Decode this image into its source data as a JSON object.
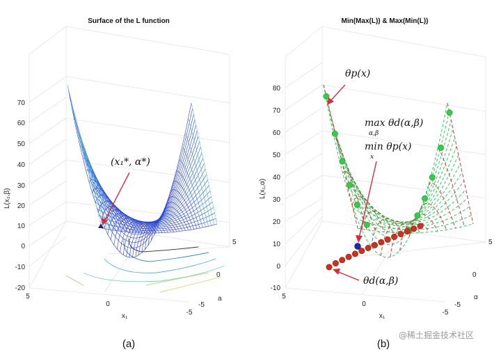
{
  "panel_a": {
    "title": "Surface of the L function",
    "z_label": "L(x₂,β)",
    "x_label": "x₁",
    "y_label": "a",
    "z_ticks": [
      "70",
      "60",
      "50",
      "40",
      "30",
      "20",
      "10",
      "0",
      "-10",
      "-20"
    ],
    "x_ticks": [
      "5",
      "0",
      "-5"
    ],
    "y_ticks": [
      "5",
      "0",
      "-5"
    ],
    "annotation": "(x₁*, α*)",
    "caption": "(a)",
    "colors": {
      "surface_low": "#2a3cd0",
      "surface_mid": "#3ec2c8",
      "surface_high": "#f2e27a",
      "marker": "#1b2a8a",
      "arrow": "#d62c3c"
    }
  },
  "panel_b": {
    "title": "Min(Max(L)) & Max(Min(L))",
    "z_label": "L(x₁,α)",
    "x_label": "x₁",
    "y_label": "α",
    "z_ticks": [
      "80",
      "70",
      "60",
      "50",
      "40",
      "30",
      "20",
      "10",
      "0",
      "-10"
    ],
    "x_ticks": [
      "5",
      "0",
      "-5"
    ],
    "y_ticks": [
      "5",
      "0",
      "-5"
    ],
    "annotation_primal": "θp(x)",
    "annotation_max": "max θd(α,β)",
    "annotation_max_sub": "α,β",
    "annotation_min": "min θp(x)",
    "annotation_min_sub": "x",
    "annotation_dual": "θd(α,β)",
    "caption": "(b)",
    "colors": {
      "mesh": "#2fc85a",
      "dashed": "#c84040",
      "green_dot": "#39c84a",
      "red_dot": "#c8321e",
      "blue_dot": "#1f2aa8",
      "arrow": "#d62c3c"
    }
  },
  "watermark": "@稀土掘金技术社区"
}
